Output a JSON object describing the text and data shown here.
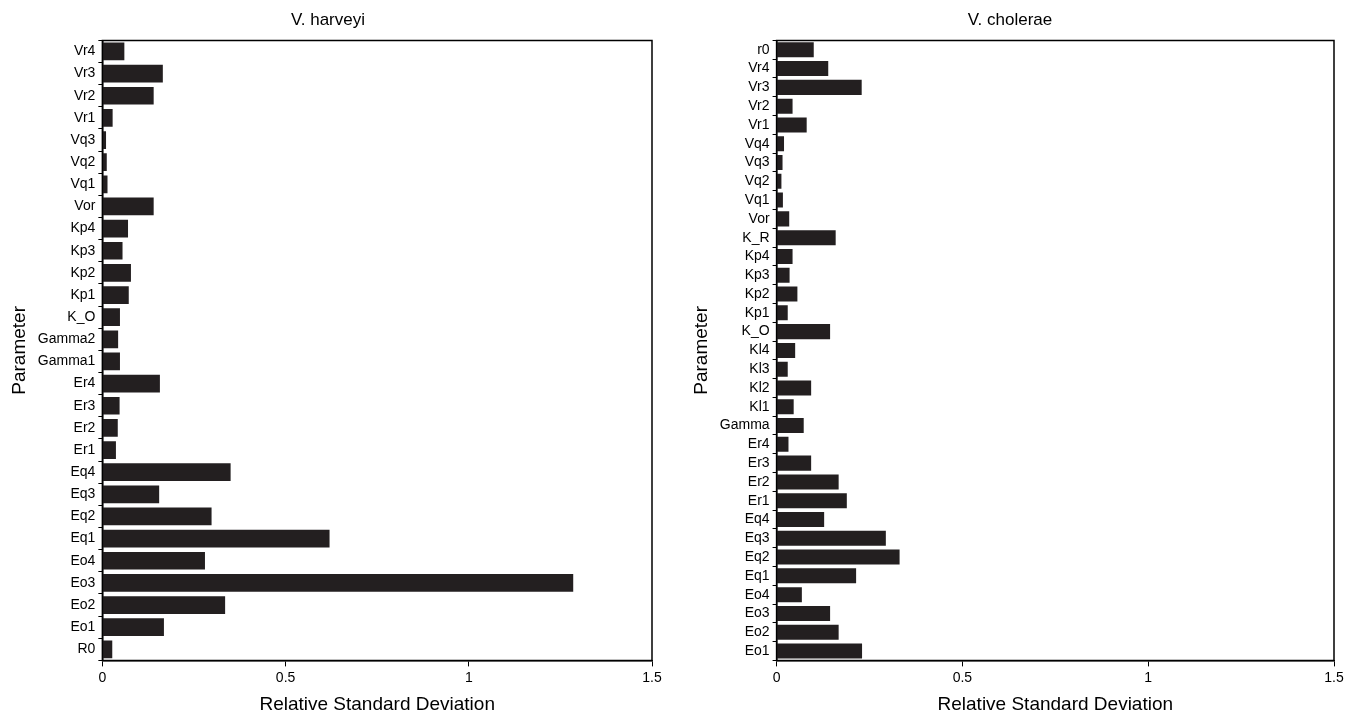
{
  "chart_data": [
    {
      "type": "bar",
      "orientation": "horizontal",
      "title": "V. harveyi",
      "xlabel": "Relative Standard Deviation",
      "ylabel": "Parameter",
      "color": "#231f20",
      "xlim": [
        0,
        1.5
      ],
      "xticks": [
        0,
        0.5,
        1,
        1.5
      ],
      "grid": false,
      "categories": [
        "Vr4",
        "Vr3",
        "Vr2",
        "Vr1",
        "Vq3",
        "Vq2",
        "Vq1",
        "Vor",
        "Kp4",
        "Kp3",
        "Kp2",
        "Kp1",
        "K_O",
        "Gamma2",
        "Gamma1",
        "Er4",
        "Er3",
        "Er2",
        "Er1",
        "Eq4",
        "Eq3",
        "Eq2",
        "Eq1",
        "Eo4",
        "Eo3",
        "Eo2",
        "Eo1",
        "R0"
      ],
      "values": [
        0.06,
        0.165,
        0.14,
        0.028,
        0.01,
        0.012,
        0.014,
        0.14,
        0.07,
        0.055,
        0.078,
        0.072,
        0.048,
        0.043,
        0.048,
        0.157,
        0.047,
        0.042,
        0.037,
        0.35,
        0.155,
        0.298,
        0.62,
        0.28,
        1.285,
        0.335,
        0.168,
        0.027
      ]
    },
    {
      "type": "bar",
      "orientation": "horizontal",
      "title": "V. cholerae",
      "xlabel": "Relative Standard Deviation",
      "ylabel": "Parameter",
      "color": "#231f20",
      "xlim": [
        0,
        1.5
      ],
      "xticks": [
        0,
        0.5,
        1,
        1.5
      ],
      "grid": false,
      "categories": [
        "r0",
        "Vr4",
        "Vr3",
        "Vr2",
        "Vr1",
        "Vq4",
        "Vq3",
        "Vq2",
        "Vq1",
        "Vor",
        "K_R",
        "Kp4",
        "Kp3",
        "Kp2",
        "Kp1",
        "K_O",
        "Kl4",
        "Kl3",
        "Kl2",
        "Kl1",
        "Gamma",
        "Er4",
        "Er3",
        "Er2",
        "Er1",
        "Eq4",
        "Eq3",
        "Eq2",
        "Eq1",
        "Eo4",
        "Eo3",
        "Eo2",
        "Eo1"
      ],
      "values": [
        0.1,
        0.139,
        0.229,
        0.043,
        0.081,
        0.02,
        0.016,
        0.013,
        0.017,
        0.034,
        0.159,
        0.043,
        0.035,
        0.056,
        0.03,
        0.144,
        0.05,
        0.03,
        0.093,
        0.046,
        0.073,
        0.032,
        0.093,
        0.167,
        0.189,
        0.128,
        0.294,
        0.331,
        0.214,
        0.068,
        0.144,
        0.167,
        0.23
      ]
    }
  ]
}
